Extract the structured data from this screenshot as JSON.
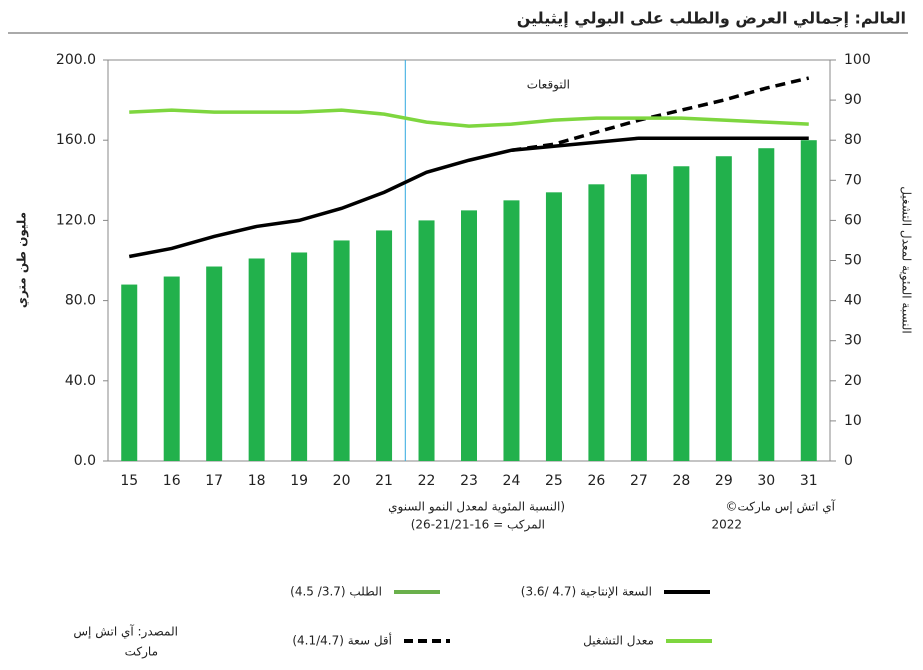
{
  "chart_data": {
    "type": "bar",
    "title": "العالم: إجمالي العرض والطلب على البولي إيثيلين",
    "y_label": "مليون طن متري",
    "y2_label": "النسبة المئوية لمعدل التشغيل",
    "annotation": "التوقعات",
    "note_lines": [
      "(النسبة المئوية لمعدل النمو السنوي",
      "المركب = 16-21/21-26)"
    ],
    "copyright_lines": [
      "آي اتش إس ماركت©",
      "2022"
    ],
    "source_lines": [
      "المصدر: آي اتش إس",
      "ماركت"
    ],
    "categories": [
      "15",
      "16",
      "17",
      "18",
      "19",
      "20",
      "21",
      "22",
      "23",
      "24",
      "25",
      "26",
      "27",
      "28",
      "29",
      "30",
      "31"
    ],
    "series": [
      {
        "name": "الطلب (3.7/ 4.5)",
        "type": "bar",
        "color": "#22b14c",
        "legend_color": "#6ab04c",
        "values": [
          88,
          92,
          97,
          101,
          104,
          110,
          115,
          120,
          125,
          130,
          134,
          138,
          143,
          147,
          152,
          156,
          160
        ]
      },
      {
        "name": "السعة الإنتاجية (4.7 /3.6)",
        "type": "line",
        "color": "#000000",
        "dash": false,
        "values": [
          102,
          106,
          112,
          117,
          120,
          126,
          134,
          144,
          150,
          155,
          157,
          159,
          161,
          161,
          161,
          161,
          161
        ]
      },
      {
        "name": "أقل سعة (4.1/4.7)",
        "type": "line",
        "color": "#000000",
        "dash": true,
        "values": [
          null,
          null,
          null,
          null,
          null,
          null,
          null,
          null,
          null,
          155,
          158,
          164,
          170,
          175,
          180,
          186,
          191
        ]
      },
      {
        "name": "معدل التشغيل",
        "type": "line",
        "color": "#7ed63f",
        "dash": false,
        "axis": "y2",
        "values": [
          87,
          87.5,
          87,
          87,
          87,
          87.5,
          86.5,
          84.5,
          83.5,
          84,
          85,
          85.5,
          85.5,
          85.5,
          85,
          84.5,
          84
        ]
      }
    ],
    "ylim": [
      0,
      200
    ],
    "yticks": [
      {
        "value": 0,
        "label": "0.0"
      },
      {
        "value": 40,
        "label": "40.0"
      },
      {
        "value": 80,
        "label": "80.0"
      },
      {
        "value": 120,
        "label": "120.0"
      },
      {
        "value": 160,
        "label": "160.0"
      },
      {
        "value": 200,
        "label": "200.0"
      }
    ],
    "y2lim": [
      0,
      100
    ],
    "y2ticks": [
      0,
      10,
      20,
      30,
      40,
      50,
      60,
      70,
      80,
      90,
      100
    ]
  }
}
